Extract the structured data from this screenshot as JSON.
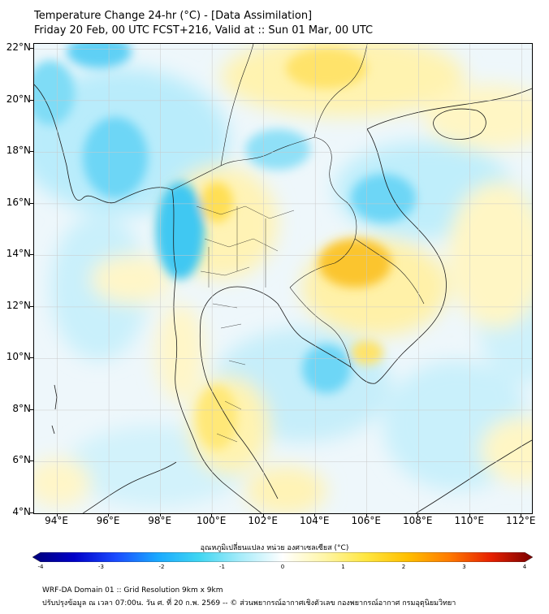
{
  "header": {
    "title": "Temperature Change 24-hr (°C) - [Data Assimilation]",
    "subtitle": "Friday 20 Feb, 00 UTC FCST+216, Valid at :: Sun 01 Mar, 00 UTC"
  },
  "map": {
    "lat_labels": [
      "22°N",
      "20°N",
      "18°N",
      "16°N",
      "14°N",
      "12°N",
      "10°N",
      "8°N",
      "6°N",
      "4°N"
    ],
    "lon_labels": [
      "94°E",
      "96°E",
      "98°E",
      "100°E",
      "102°E",
      "104°E",
      "106°E",
      "108°E",
      "110°E",
      "112°E"
    ],
    "lat_range": [
      4,
      22.2
    ],
    "lon_range": [
      93.1,
      112.4
    ],
    "gridlines": true,
    "land_border_color": "#000000",
    "colors": {
      "cool_strong": "#22b7ee",
      "cool_light": "#b9ecfb",
      "neutral": "#eef7fb",
      "warm_light": "#fff6b8",
      "warm_strong": "#ffd93a",
      "warm_orange": "#f9b818"
    }
  },
  "colorbar": {
    "title": "อุณหภูมิเปลี่ยนแปลง หน่วย องศาเซลเซียส (°C)",
    "ticks": [
      "-4",
      "-3",
      "-2",
      "-1",
      "0",
      "1",
      "2",
      "3",
      "4"
    ],
    "range": [
      -4,
      4
    ],
    "stops": [
      "#00007a",
      "#0000c8",
      "#1a4bff",
      "#1aa9ff",
      "#3fd6f2",
      "#a8ecfa",
      "#ffffff",
      "#fff6a8",
      "#ffe640",
      "#ffbf00",
      "#ff7a00",
      "#e62000",
      "#7a0000"
    ]
  },
  "footer": {
    "line1": "WRF-DA Domain 01 :: Grid Resolution 9km x 9km",
    "line2": "ปรับปรุงข้อมูล ณ เวลา 07:00น. วัน ศ. ที่ 20 ก.พ. 2569 -- © ส่วนพยากรณ์อากาศเชิงตัวเลข กองพยากรณ์อากาศ กรมอุตุนิยมวิทยา"
  }
}
